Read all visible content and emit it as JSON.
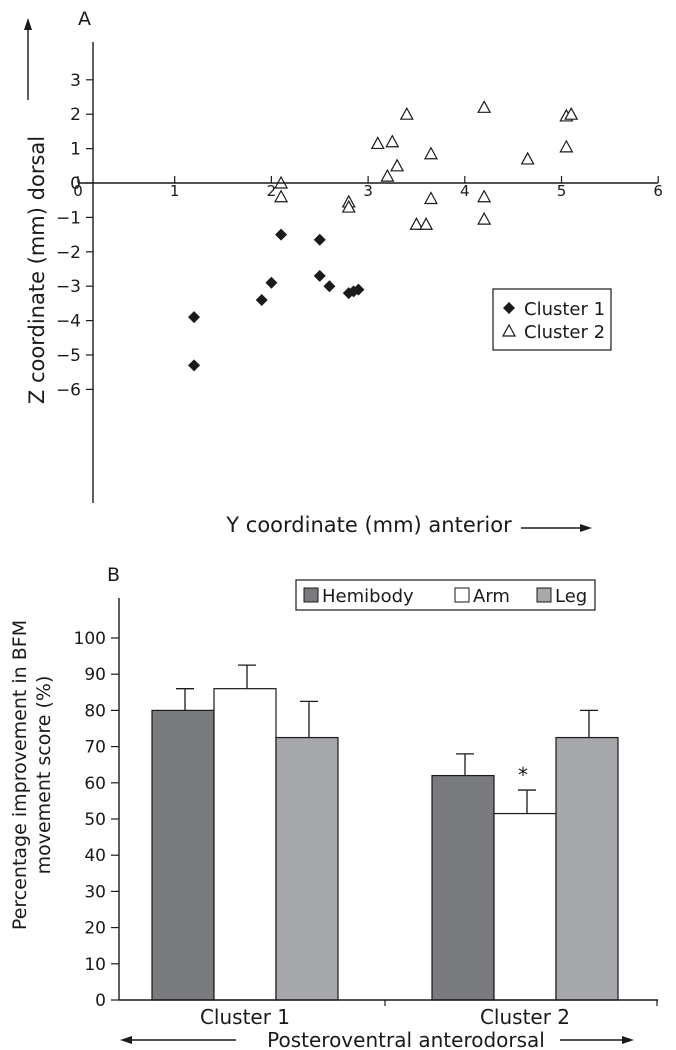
{
  "chart_data": [
    {
      "panel_label": "A",
      "type": "scatter",
      "xlabel": "Y coordinate (mm) anterior",
      "ylabel": "Z coordinate (mm) dorsal",
      "xlim": [
        0,
        6
      ],
      "ylim": [
        -6,
        3
      ],
      "x_ticks": [
        "0",
        "1",
        "2",
        "3",
        "4",
        "5",
        "6"
      ],
      "y_ticks": [
        "3",
        "2",
        "1",
        "0",
        "−1",
        "−2",
        "−3",
        "−4",
        "−5",
        "−6"
      ],
      "grid": false,
      "legend_position": "right",
      "series": [
        {
          "name": "Cluster 1",
          "marker": "diamond-filled",
          "points": [
            [
              1.2,
              -3.9
            ],
            [
              1.2,
              -5.3
            ],
            [
              1.9,
              -3.4
            ],
            [
              2.0,
              -2.9
            ],
            [
              2.1,
              -1.5
            ],
            [
              2.5,
              -1.65
            ],
            [
              2.5,
              -2.7
            ],
            [
              2.6,
              -3.0
            ],
            [
              2.8,
              -3.2
            ],
            [
              2.85,
              -3.15
            ],
            [
              2.9,
              -3.1
            ]
          ]
        },
        {
          "name": "Cluster 2",
          "marker": "triangle-open",
          "points": [
            [
              2.1,
              0.0
            ],
            [
              2.1,
              -0.4
            ],
            [
              2.8,
              -0.55
            ],
            [
              2.8,
              -0.7
            ],
            [
              3.1,
              1.15
            ],
            [
              3.2,
              0.2
            ],
            [
              3.25,
              1.2
            ],
            [
              3.3,
              0.5
            ],
            [
              3.4,
              2.0
            ],
            [
              3.5,
              -1.2
            ],
            [
              3.6,
              -1.2
            ],
            [
              3.65,
              0.85
            ],
            [
              3.65,
              -0.45
            ],
            [
              4.2,
              2.2
            ],
            [
              4.2,
              -0.4
            ],
            [
              4.2,
              -1.05
            ],
            [
              4.65,
              0.7
            ],
            [
              5.05,
              1.95
            ],
            [
              5.1,
              2.0
            ],
            [
              5.05,
              1.05
            ]
          ]
        }
      ]
    },
    {
      "panel_label": "B",
      "type": "bar",
      "ylabel_lines": [
        "Percentage improvement in BFM",
        "movement score (%)"
      ],
      "ylim": [
        0,
        100
      ],
      "y_ticks": [
        "0",
        "10",
        "20",
        "30",
        "40",
        "50",
        "60",
        "70",
        "80",
        "90",
        "100"
      ],
      "categories": [
        "Cluster 1",
        "Cluster 2"
      ],
      "legend_position": "top",
      "series": [
        {
          "name": "Hemibody",
          "color": "#7a7b7f",
          "values": [
            80,
            62
          ],
          "errors": [
            6,
            6
          ]
        },
        {
          "name": "Arm",
          "color": "#ffffff",
          "values": [
            86,
            51.5
          ],
          "errors": [
            6.5,
            6.5
          ]
        },
        {
          "name": "Leg",
          "color": "#a7a8ac",
          "values": [
            72.5,
            72.5
          ],
          "errors": [
            10,
            7.5
          ]
        }
      ],
      "annotations": [
        {
          "category": "Cluster 2",
          "series": "Arm",
          "text": "*"
        }
      ],
      "bottom_caption": "Posteroventral anterodorsal"
    }
  ]
}
